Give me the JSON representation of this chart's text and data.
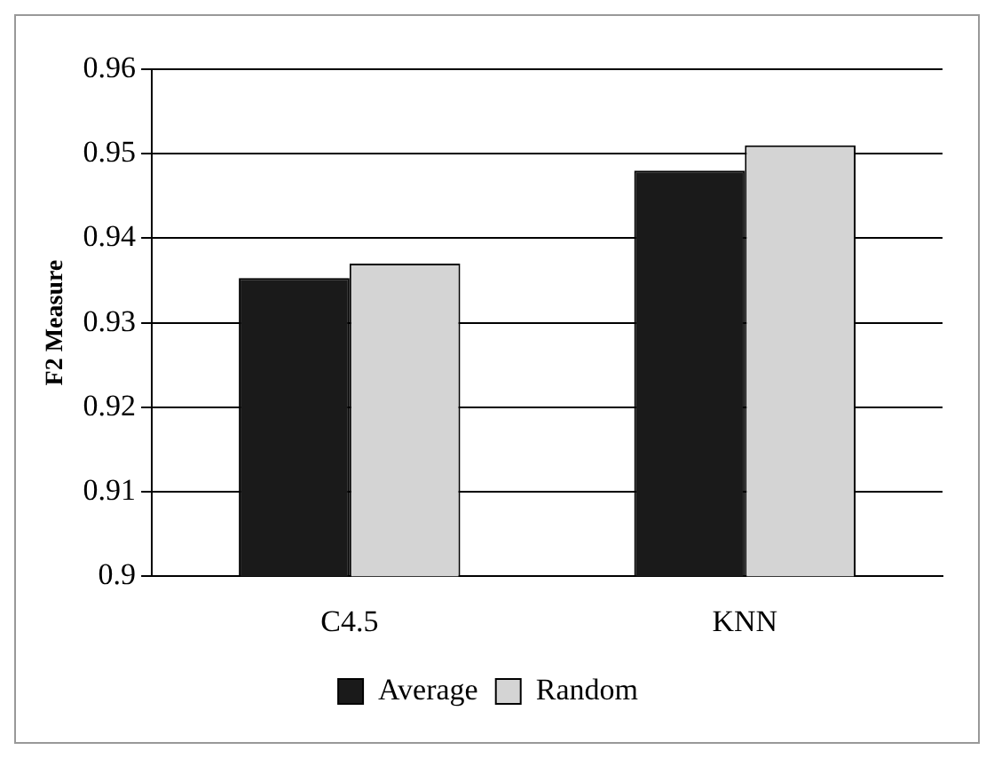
{
  "chart_data": {
    "type": "bar",
    "ylabel": "F2 Measure",
    "categories": [
      "C4.5",
      "KNN"
    ],
    "series": [
      {
        "name": "Average",
        "color": "#1a1a1a",
        "values": [
          0.9353,
          0.948
        ]
      },
      {
        "name": "Random",
        "color": "#d4d4d4",
        "values": [
          0.937,
          0.951
        ]
      }
    ],
    "ylim": [
      0.9,
      0.96
    ],
    "yticks": [
      0.9,
      0.91,
      0.92,
      0.93,
      0.94,
      0.95,
      0.96
    ],
    "grid": "y",
    "legend": "bottom"
  }
}
